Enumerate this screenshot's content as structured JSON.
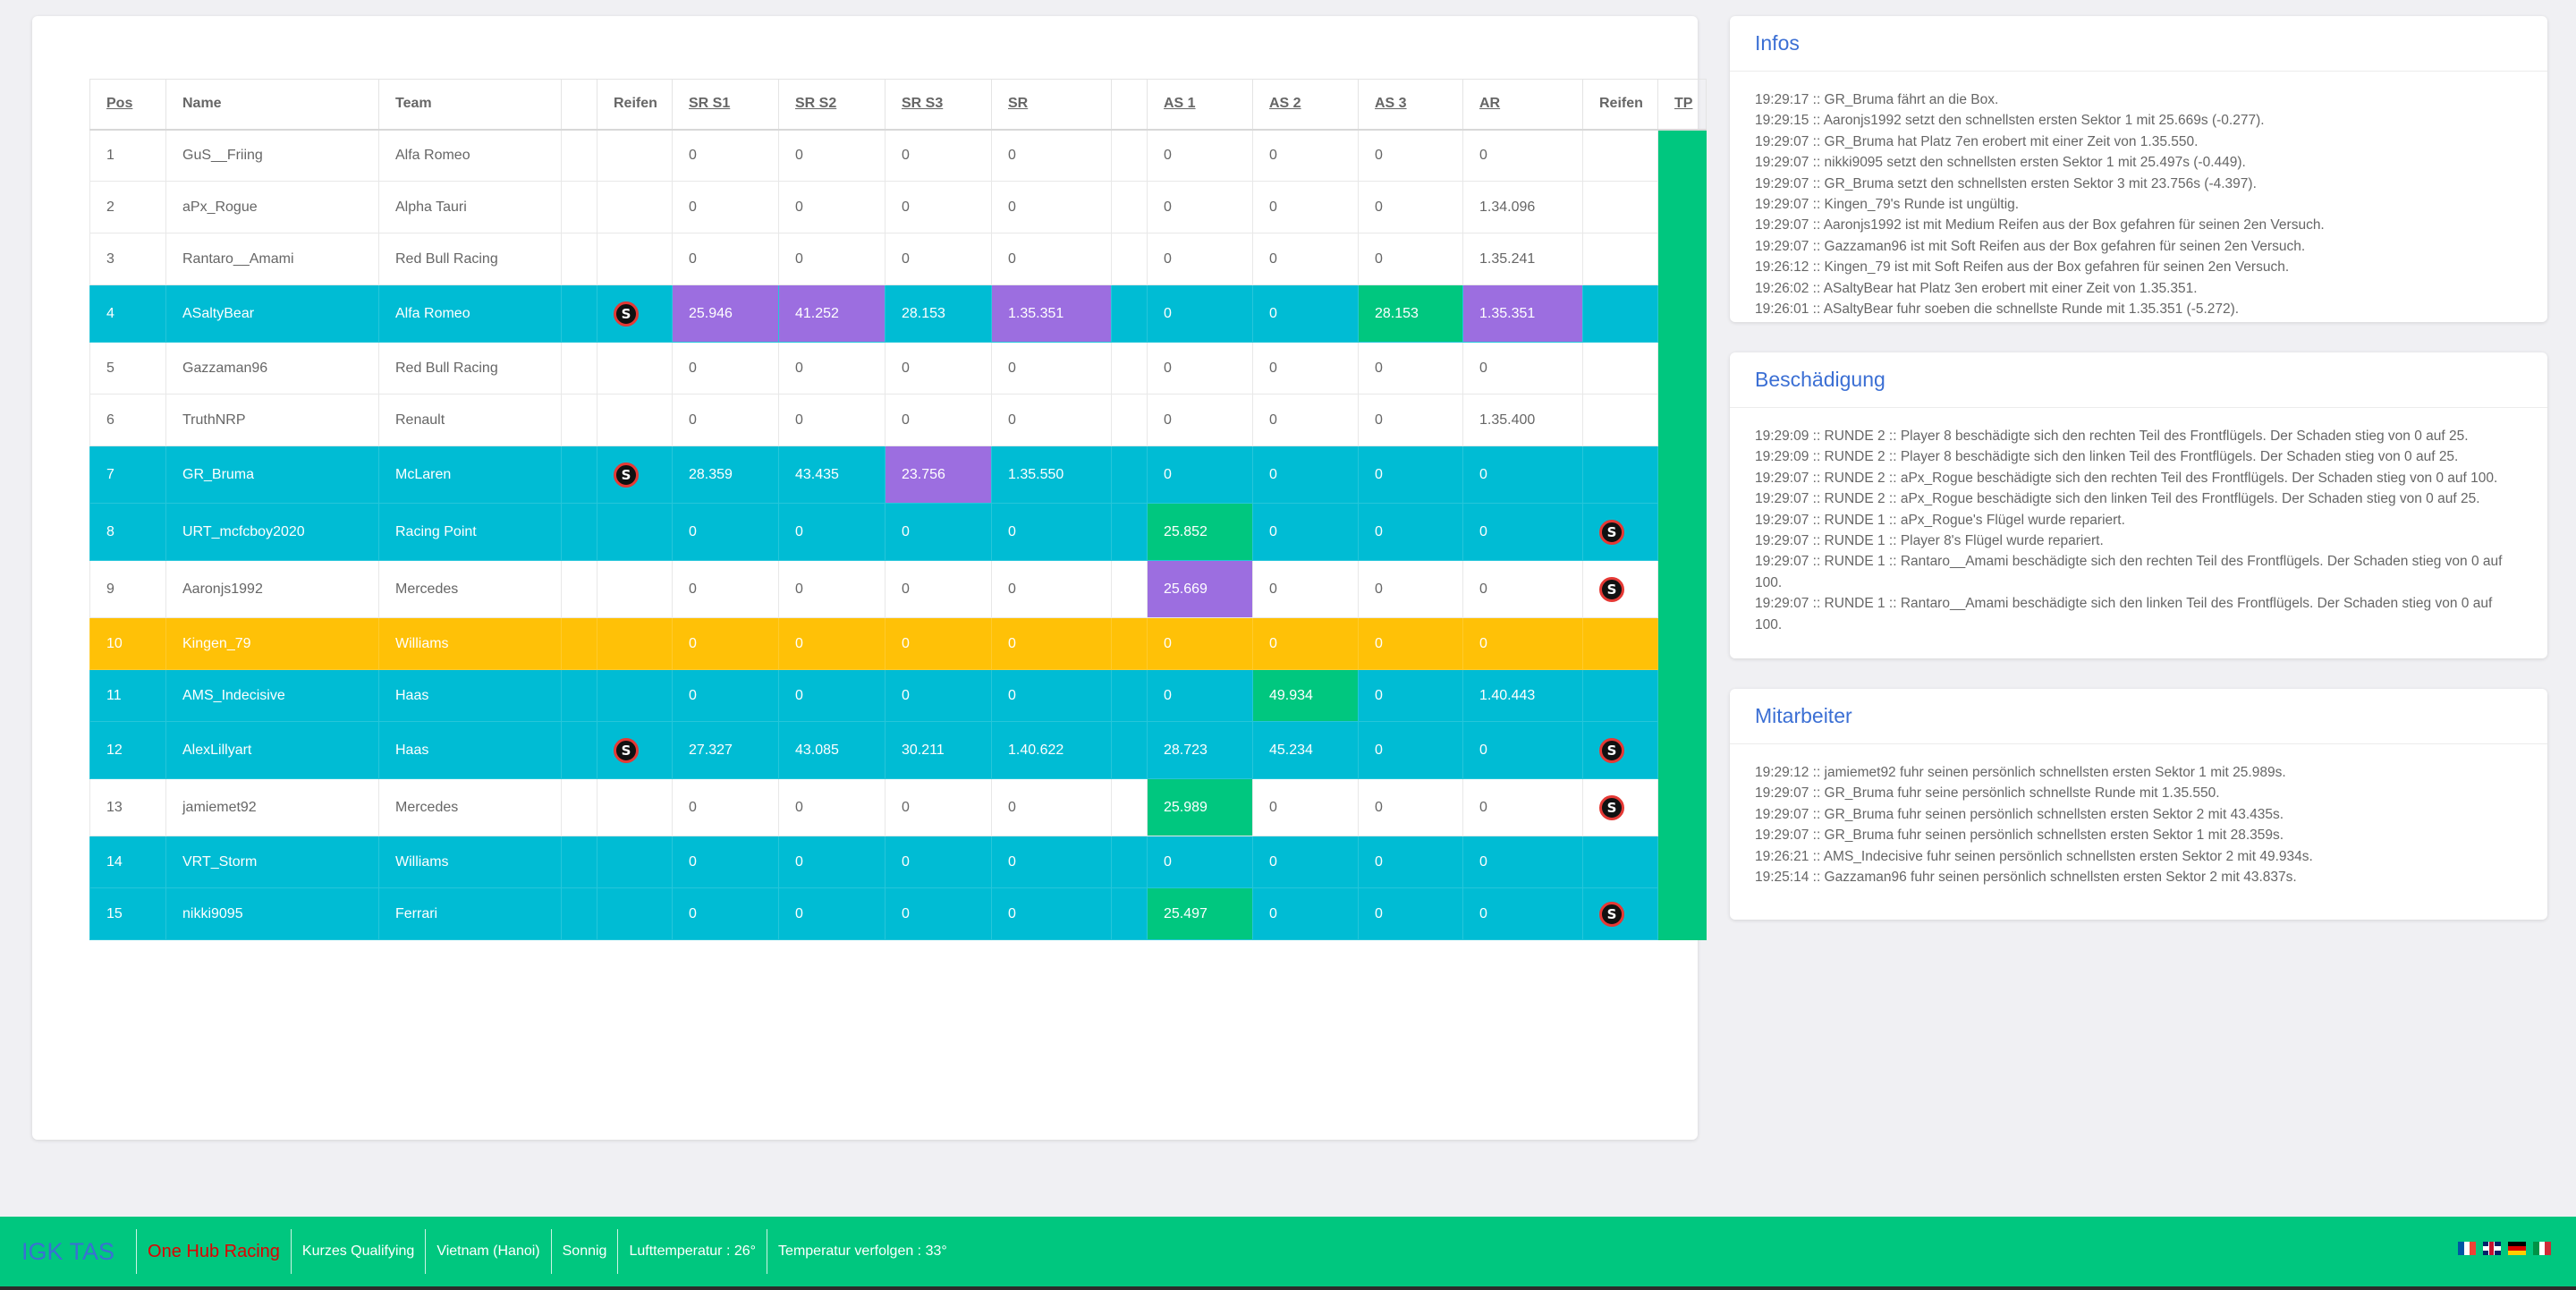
{
  "table": {
    "headers": {
      "pos": "Pos",
      "name": "Name",
      "team": "Team",
      "blank1": "",
      "tyre1": "Reifen",
      "sr1": "SR S1",
      "sr2": "SR S2",
      "sr3": "SR S3",
      "sr": "SR",
      "blank2": "",
      "as1": "AS 1",
      "as2": "AS 2",
      "as3": "AS 3",
      "ar": "AR",
      "tyre2": "Reifen",
      "tp": "TP"
    },
    "tyre_glyph": "S",
    "rows": [
      {
        "pos": "1",
        "name": "GuS__Friing",
        "team": "Alfa Romeo",
        "tyre1": "",
        "sr1": "0",
        "sr2": "0",
        "sr3": "0",
        "sr": "0",
        "as1": "0",
        "as2": "0",
        "as3": "0",
        "ar": "0",
        "tyre2": "",
        "style": "white"
      },
      {
        "pos": "2",
        "name": "aPx_Rogue",
        "team": "Alpha Tauri",
        "tyre1": "",
        "sr1": "0",
        "sr2": "0",
        "sr3": "0",
        "sr": "0",
        "as1": "0",
        "as2": "0",
        "as3": "0",
        "ar": "1.34.096",
        "tyre2": "",
        "style": "white"
      },
      {
        "pos": "3",
        "name": "Rantaro__Amami",
        "team": "Red Bull Racing",
        "tyre1": "",
        "sr1": "0",
        "sr2": "0",
        "sr3": "0",
        "sr": "0",
        "as1": "0",
        "as2": "0",
        "as3": "0",
        "ar": "1.35.241",
        "tyre2": "",
        "style": "white"
      },
      {
        "pos": "4",
        "name": "ASaltyBear",
        "team": "Alfa Romeo",
        "tyre1": "S",
        "sr1": "25.946",
        "sr2": "41.252",
        "sr3": "28.153",
        "sr": "1.35.351",
        "as1": "0",
        "as2": "0",
        "as3": "28.153",
        "ar": "1.35.351",
        "tyre2": "",
        "style": "cyan",
        "purple": [
          "sr1",
          "sr2",
          "sr",
          "ar"
        ],
        "green": [
          "as3"
        ]
      },
      {
        "pos": "5",
        "name": "Gazzaman96",
        "team": "Red Bull Racing",
        "tyre1": "",
        "sr1": "0",
        "sr2": "0",
        "sr3": "0",
        "sr": "0",
        "as1": "0",
        "as2": "0",
        "as3": "0",
        "ar": "0",
        "tyre2": "",
        "style": "white"
      },
      {
        "pos": "6",
        "name": "TruthNRP",
        "team": "Renault",
        "tyre1": "",
        "sr1": "0",
        "sr2": "0",
        "sr3": "0",
        "sr": "0",
        "as1": "0",
        "as2": "0",
        "as3": "0",
        "ar": "1.35.400",
        "tyre2": "",
        "style": "white"
      },
      {
        "pos": "7",
        "name": "GR_Bruma",
        "team": "McLaren",
        "tyre1": "S",
        "sr1": "28.359",
        "sr2": "43.435",
        "sr3": "23.756",
        "sr": "1.35.550",
        "as1": "0",
        "as2": "0",
        "as3": "0",
        "ar": "0",
        "tyre2": "",
        "style": "cyan",
        "purple": [
          "sr3"
        ]
      },
      {
        "pos": "8",
        "name": "URT_mcfcboy2020",
        "team": "Racing Point",
        "tyre1": "",
        "sr1": "0",
        "sr2": "0",
        "sr3": "0",
        "sr": "0",
        "as1": "25.852",
        "as2": "0",
        "as3": "0",
        "ar": "0",
        "tyre2": "S",
        "style": "cyan",
        "green": [
          "as1"
        ]
      },
      {
        "pos": "9",
        "name": "Aaronjs1992",
        "team": "Mercedes",
        "tyre1": "",
        "sr1": "0",
        "sr2": "0",
        "sr3": "0",
        "sr": "0",
        "as1": "25.669",
        "as2": "0",
        "as3": "0",
        "ar": "0",
        "tyre2": "S",
        "style": "white",
        "purple": [
          "as1"
        ]
      },
      {
        "pos": "10",
        "name": "Kingen_79",
        "team": "Williams",
        "tyre1": "",
        "sr1": "0",
        "sr2": "0",
        "sr3": "0",
        "sr": "0",
        "as1": "0",
        "as2": "0",
        "as3": "0",
        "ar": "0",
        "tyre2": "",
        "style": "orange"
      },
      {
        "pos": "11",
        "name": "AMS_Indecisive",
        "team": "Haas",
        "tyre1": "",
        "sr1": "0",
        "sr2": "0",
        "sr3": "0",
        "sr": "0",
        "as1": "0",
        "as2": "49.934",
        "as3": "0",
        "ar": "1.40.443",
        "tyre2": "",
        "style": "cyan",
        "green": [
          "as2"
        ]
      },
      {
        "pos": "12",
        "name": "AlexLillyart",
        "team": "Haas",
        "tyre1": "S",
        "sr1": "27.327",
        "sr2": "43.085",
        "sr3": "30.211",
        "sr": "1.40.622",
        "as1": "28.723",
        "as2": "45.234",
        "as3": "0",
        "ar": "0",
        "tyre2": "S",
        "style": "cyan"
      },
      {
        "pos": "13",
        "name": "jamiemet92",
        "team": "Mercedes",
        "tyre1": "",
        "sr1": "0",
        "sr2": "0",
        "sr3": "0",
        "sr": "0",
        "as1": "25.989",
        "as2": "0",
        "as3": "0",
        "ar": "0",
        "tyre2": "S",
        "style": "white",
        "green": [
          "as1"
        ]
      },
      {
        "pos": "14",
        "name": "VRT_Storm",
        "team": "Williams",
        "tyre1": "",
        "sr1": "0",
        "sr2": "0",
        "sr3": "0",
        "sr": "0",
        "as1": "0",
        "as2": "0",
        "as3": "0",
        "ar": "0",
        "tyre2": "",
        "style": "cyan"
      },
      {
        "pos": "15",
        "name": "nikki9095",
        "team": "Ferrari",
        "tyre1": "",
        "sr1": "0",
        "sr2": "0",
        "sr3": "0",
        "sr": "0",
        "as1": "25.497",
        "as2": "0",
        "as3": "0",
        "ar": "0",
        "tyre2": "S",
        "style": "cyan",
        "green": [
          "as1"
        ]
      }
    ]
  },
  "infos": {
    "title": "Infos",
    "lines": [
      "19:29:17 :: GR_Bruma fährt an die Box.",
      "19:29:15 :: Aaronjs1992 setzt den schnellsten ersten Sektor 1 mit 25.669s (-0.277).",
      "19:29:07 :: GR_Bruma hat Platz 7en erobert mit einer Zeit von 1.35.550.",
      "19:29:07 :: nikki9095 setzt den schnellsten ersten Sektor 1 mit 25.497s (-0.449).",
      "19:29:07 :: GR_Bruma setzt den schnellsten ersten Sektor 3 mit 23.756s (-4.397).",
      "19:29:07 :: Kingen_79's Runde ist ungültig.",
      "19:29:07 :: Aaronjs1992 ist mit Medium Reifen aus der Box gefahren für seinen 2en Versuch.",
      "19:29:07 :: Gazzaman96 ist mit Soft Reifen aus der Box gefahren für seinen 2en Versuch.",
      "19:26:12 :: Kingen_79 ist mit Soft Reifen aus der Box gefahren für seinen 2en Versuch.",
      "19:26:02 :: ASaltyBear hat Platz 3en erobert mit einer Zeit von 1.35.351.",
      "19:26:01 :: ASaltyBear fuhr soeben die schnellste Runde mit 1.35.351 (-5.272)."
    ]
  },
  "damage": {
    "title": "Beschädigung",
    "lines": [
      "19:29:09 :: RUNDE 2 :: Player 8 beschädigte sich den rechten Teil des Frontflügels. Der Schaden stieg von 0 auf 25.",
      "19:29:09 :: RUNDE 2 :: Player 8 beschädigte sich den linken Teil des Frontflügels. Der Schaden stieg von 0 auf 25.",
      "19:29:07 :: RUNDE 2 :: aPx_Rogue beschädigte sich den rechten Teil des Frontflügels. Der Schaden stieg von 0 auf 100.",
      "19:29:07 :: RUNDE 2 :: aPx_Rogue beschädigte sich den linken Teil des Frontflügels. Der Schaden stieg von 0 auf 25.",
      "19:29:07 :: RUNDE 1 :: aPx_Rogue's Flügel wurde repariert.",
      "19:29:07 :: RUNDE 1 :: Player 8's Flügel wurde repariert.",
      "19:29:07 :: RUNDE 1 :: Rantaro__Amami beschädigte sich den rechten Teil des Frontflügels. Der Schaden stieg von 0 auf 100.",
      "19:29:07 :: RUNDE 1 :: Rantaro__Amami beschädigte sich den linken Teil des Frontflügels. Der Schaden stieg von 0 auf 100."
    ]
  },
  "staff": {
    "title": "Mitarbeiter",
    "lines": [
      "19:29:12 :: jamiemet92 fuhr seinen persönlich schnellsten ersten Sektor 1 mit 25.989s.",
      "19:29:07 :: GR_Bruma fuhr seine persönlich schnellste Runde mit 1.35.550.",
      "19:29:07 :: GR_Bruma fuhr seinen persönlich schnellsten ersten Sektor 2 mit 43.435s.",
      "19:29:07 :: GR_Bruma fuhr seinen persönlich schnellsten ersten Sektor 1 mit 28.359s.",
      "19:26:21 :: AMS_Indecisive fuhr seinen persönlich schnellsten ersten Sektor 2 mit 49.934s.",
      "19:25:14 :: Gazzaman96 fuhr seinen persönlich schnellsten ersten Sektor 2 mit 43.837s."
    ]
  },
  "footer": {
    "brand": "IGK TAS",
    "league": "One Hub Racing",
    "session": "Kurzes Qualifying",
    "track": "Vietnam (Hanoi)",
    "weather": "Sonnig",
    "air_temp": "Lufttemperatur : 26°",
    "track_temp": "Temperatur verfolgen : 33°"
  },
  "flags": [
    "flag-fr-icon",
    "flag-uk-icon",
    "flag-de-icon",
    "flag-it-icon"
  ],
  "colors": {
    "cyan_row": "#00bcd4",
    "orange_row": "#ffc107",
    "purple_cell": "#9c6ee0",
    "green_cell": "#00c77f",
    "footer": "#00c77f",
    "panel_title": "#3b6fd4",
    "league_red": "#e00000"
  }
}
